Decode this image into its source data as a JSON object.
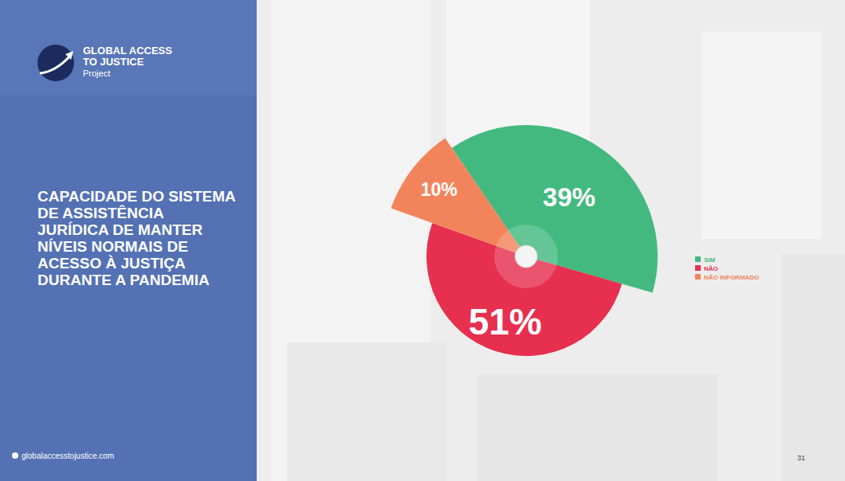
{
  "chart_data": {
    "type": "pie",
    "title": "CAPACIDADE DO SISTEMA DE ASSISTÊNCIA JURÍDICA DE MANTER NÍVEIS NORMAIS DE ACESSO À JUSTIÇA DURANTE A PANDEMIA",
    "categories": [
      "SIM",
      "NÃO",
      "NÃO INFORMADO"
    ],
    "values": [
      39,
      51,
      10
    ],
    "value_labels": [
      "39%",
      "51%",
      "10%"
    ],
    "colors": [
      "#43b97f",
      "#e72f4f",
      "#f2845c"
    ],
    "data_labels": true,
    "legend": "right"
  },
  "brand": {
    "name": [
      "GLOBAL ACCESS",
      "TO JUSTICE"
    ],
    "sub": "Project"
  },
  "footer": {
    "url": "globalaccesstojustice.com",
    "page": "31"
  }
}
